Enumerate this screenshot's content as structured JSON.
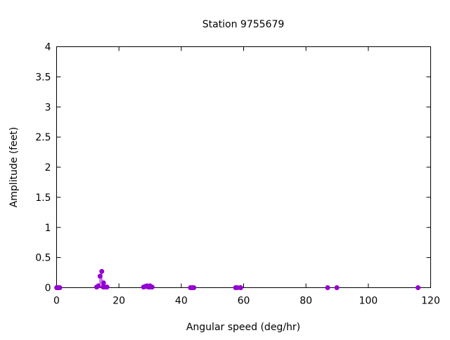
{
  "chart_data": {
    "type": "scatter",
    "style": "impulses with points",
    "title": "Station 9755679",
    "xlabel": "Angular speed (deg/hr)",
    "ylabel": "Amplitude (feet)",
    "xlim": [
      0,
      120
    ],
    "ylim": [
      0,
      4
    ],
    "xticks": [
      "0",
      "20",
      "40",
      "60",
      "80",
      "100",
      "120"
    ],
    "yticks": [
      "0",
      "0.5",
      "1",
      "1.5",
      "2",
      "2.5",
      "3",
      "3.5",
      "4"
    ],
    "grid": false,
    "legend": "none",
    "color": "#9400d3",
    "x": [
      0.04,
      0.08,
      0.54,
      1.02,
      12.85,
      13.4,
      13.94,
      14.49,
      14.96,
      15.04,
      15.59,
      16.14,
      27.9,
      28.44,
      28.51,
      28.99,
      29.46,
      29.53,
      30.0,
      30.08,
      30.63,
      42.93,
      43.48,
      44.03,
      57.42,
      57.97,
      58.98,
      59.07,
      86.95,
      89.9,
      115.94
    ],
    "y": [
      0.0,
      0.0,
      0.0,
      0.0,
      0.01,
      0.03,
      0.19,
      0.27,
      0.01,
      0.08,
      0.01,
      0.01,
      0.01,
      0.02,
      0.02,
      0.03,
      0.01,
      0.01,
      0.03,
      0.01,
      0.01,
      0.0,
      0.0,
      0.0,
      0.0,
      0.0,
      0.0,
      0.0,
      0.0,
      0.0,
      0.0
    ]
  }
}
